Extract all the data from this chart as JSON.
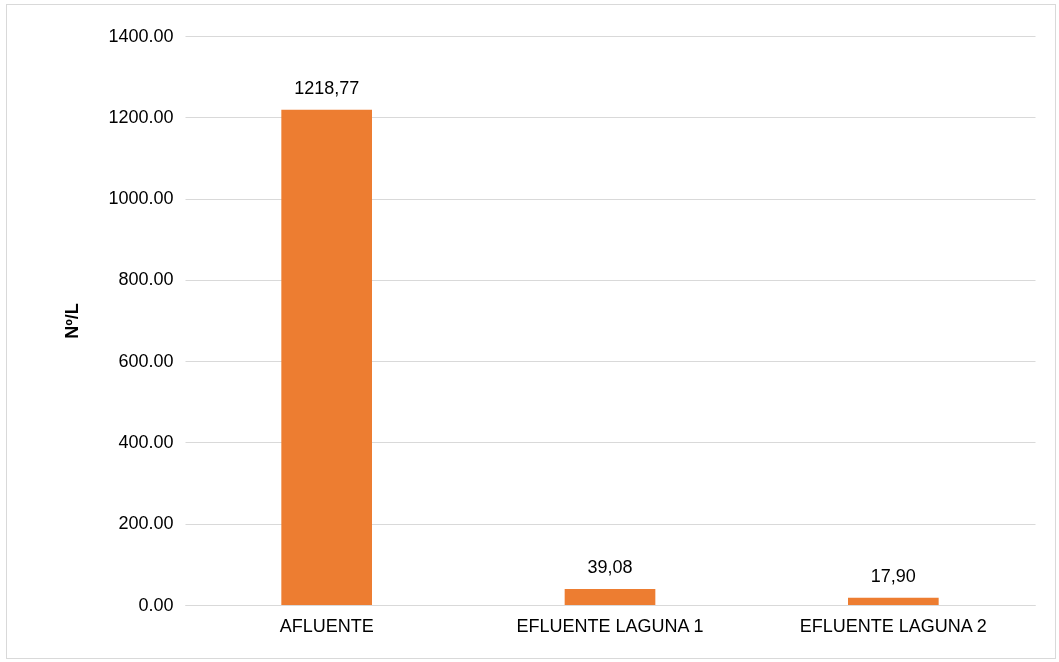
{
  "chart_data": {
    "type": "bar",
    "ylabel": "Nº/L",
    "categories": [
      "AFLUENTE",
      "EFLUENTE LAGUNA 1",
      "EFLUENTE LAGUNA 2"
    ],
    "values": [
      1218.77,
      39.08,
      17.9
    ],
    "value_labels": [
      "1218,77",
      "39,08",
      "17,90"
    ],
    "color": "#ed7d31",
    "ylim": [
      0,
      1400
    ],
    "yticks": [
      {
        "value": 0,
        "label": "0.00"
      },
      {
        "value": 200,
        "label": "200.00"
      },
      {
        "value": 400,
        "label": "400.00"
      },
      {
        "value": 600,
        "label": "600.00"
      },
      {
        "value": 800,
        "label": "800.00"
      },
      {
        "value": 1000,
        "label": "1000.00"
      },
      {
        "value": 1200,
        "label": "1200.00"
      },
      {
        "value": 1400,
        "label": "1400.00"
      }
    ],
    "grid": "y"
  }
}
